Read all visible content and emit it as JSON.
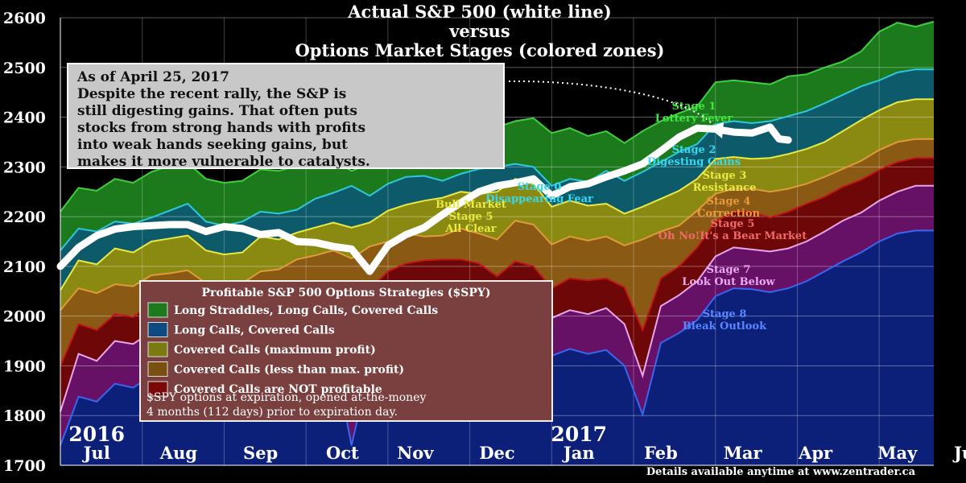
{
  "chart_data": {
    "type": "area",
    "title_lines": [
      "Actual S&P 500 (white line)",
      "versus",
      "Options Market Stages (colored zones)"
    ],
    "ylim": [
      1700,
      2600
    ],
    "yticks": [
      1700,
      1800,
      1900,
      2000,
      2100,
      2200,
      2300,
      2400,
      2500,
      2600
    ],
    "xlim": [
      0,
      48
    ],
    "month_labels": [
      {
        "label": "Jul",
        "x": 2
      },
      {
        "label": "Aug",
        "x": 6.5
      },
      {
        "label": "Sep",
        "x": 11
      },
      {
        "label": "Oct",
        "x": 15.5
      },
      {
        "label": "Nov",
        "x": 19.5
      },
      {
        "label": "Dec",
        "x": 24
      },
      {
        "label": "Jan",
        "x": 28.5
      },
      {
        "label": "Feb",
        "x": 33
      },
      {
        "label": "Mar",
        "x": 37.5
      },
      {
        "label": "Apr",
        "x": 41.5
      },
      {
        "label": "May",
        "x": 46
      },
      {
        "label": "Jun",
        "x": 50
      }
    ],
    "year_labels": [
      {
        "label": "2016",
        "x": 2
      },
      {
        "label": "2017",
        "x": 28.5
      }
    ],
    "x": [
      0,
      1,
      2,
      3,
      4,
      5,
      6,
      7,
      8,
      9,
      10,
      11,
      12,
      13,
      14,
      15,
      16,
      17,
      18,
      19,
      20,
      21,
      22,
      23,
      24,
      25,
      26,
      27,
      28,
      29,
      30,
      31,
      32,
      33,
      34,
      35,
      36,
      37,
      38,
      39,
      40,
      41,
      42,
      43,
      44,
      45,
      46,
      47,
      48
    ],
    "zones": [
      {
        "name": "Long Straddles, Long Calls, Covered Calls",
        "color": "#1c7a1c",
        "edge": "#3fcf3f",
        "values": [
          2210,
          2258,
          2252,
          2276,
          2268,
          2290,
          2302,
          2308,
          2276,
          2268,
          2272,
          2295,
          2292,
          2302,
          2318,
          2312,
          2292,
          2306,
          2332,
          2330,
          2352,
          2344,
          2360,
          2386,
          2380,
          2392,
          2398,
          2368,
          2378,
          2362,
          2372,
          2348,
          2372,
          2392,
          2408,
          2422,
          2470,
          2474,
          2470,
          2466,
          2482,
          2486,
          2500,
          2512,
          2532,
          2572,
          2590,
          2582,
          2592
        ]
      },
      {
        "name": "Long Calls, Covered Calls",
        "color": "#0d5a6a",
        "edge": "#2ec8e0",
        "values": [
          2132,
          2176,
          2170,
          2190,
          2186,
          2198,
          2212,
          2226,
          2190,
          2182,
          2190,
          2210,
          2206,
          2214,
          2236,
          2248,
          2262,
          2242,
          2266,
          2280,
          2282,
          2272,
          2286,
          2296,
          2300,
          2306,
          2300,
          2262,
          2276,
          2270,
          2292,
          2272,
          2290,
          2310,
          2330,
          2346,
          2386,
          2392,
          2388,
          2392,
          2402,
          2412,
          2428,
          2445,
          2462,
          2474,
          2490,
          2496,
          2496
        ]
      },
      {
        "name": "Covered Calls (maximum profit)",
        "color": "#8a8a12",
        "edge": "#eaea44",
        "values": [
          2052,
          2112,
          2104,
          2136,
          2128,
          2150,
          2156,
          2162,
          2132,
          2124,
          2128,
          2160,
          2154,
          2168,
          2178,
          2188,
          2178,
          2188,
          2212,
          2224,
          2232,
          2238,
          2250,
          2246,
          2250,
          2276,
          2266,
          2220,
          2232,
          2222,
          2226,
          2206,
          2220,
          2236,
          2252,
          2276,
          2316,
          2320,
          2316,
          2318,
          2326,
          2336,
          2350,
          2372,
          2394,
          2414,
          2430,
          2436,
          2436
        ]
      },
      {
        "name": "Covered Calls (less than max. profit)",
        "color": "#8a5a14",
        "edge": "#e09a3a",
        "values": [
          2012,
          2056,
          2046,
          2064,
          2060,
          2082,
          2086,
          2092,
          2066,
          2060,
          2066,
          2090,
          2094,
          2114,
          2122,
          2132,
          2116,
          2140,
          2150,
          2166,
          2160,
          2162,
          2176,
          2166,
          2154,
          2192,
          2184,
          2144,
          2160,
          2152,
          2160,
          2142,
          2154,
          2170,
          2182,
          2212,
          2246,
          2256,
          2256,
          2250,
          2256,
          2266,
          2280,
          2296,
          2312,
          2334,
          2350,
          2356,
          2356
        ]
      },
      {
        "name": "Covered Calls are NOT profitable",
        "color": "#6e0808",
        "edge": "#c01818",
        "values": [
          1900,
          1984,
          1972,
          2004,
          1998,
          2026,
          2036,
          2046,
          1994,
          1984,
          1994,
          2020,
          2018,
          2040,
          2050,
          2070,
          1890,
          2054,
          2090,
          2106,
          2112,
          2114,
          2114,
          2106,
          2080,
          2110,
          2100,
          2056,
          2076,
          2072,
          2076,
          2058,
          1972,
          2076,
          2100,
          2138,
          2190,
          2210,
          2210,
          2198,
          2210,
          2226,
          2240,
          2260,
          2274,
          2294,
          2310,
          2318,
          2318
        ]
      },
      {
        "name": "Stage 7 zone",
        "color": "#661166",
        "edge": "#e6a6ee",
        "values": [
          1808,
          1924,
          1910,
          1950,
          1944,
          1968,
          1982,
          1990,
          1944,
          1930,
          1944,
          1972,
          1968,
          1986,
          2000,
          2018,
          1830,
          1984,
          2020,
          2038,
          2044,
          2050,
          2060,
          2040,
          2016,
          2060,
          2040,
          1996,
          2012,
          2004,
          2016,
          1984,
          1880,
          2020,
          2042,
          2070,
          2120,
          2138,
          2134,
          2130,
          2136,
          2150,
          2170,
          2192,
          2208,
          2232,
          2250,
          2262,
          2262
        ]
      },
      {
        "name": "Stage 8 zone",
        "color": "#0c207a",
        "edge": "#3a66ee",
        "values": [
          1740,
          1838,
          1828,
          1864,
          1856,
          1880,
          1890,
          1900,
          1854,
          1836,
          1854,
          1884,
          1880,
          1898,
          1912,
          1930,
          1740,
          1900,
          1940,
          1956,
          1960,
          1966,
          1974,
          1954,
          1930,
          1970,
          1952,
          1920,
          1934,
          1924,
          1932,
          1900,
          1802,
          1946,
          1966,
          1992,
          2040,
          2056,
          2054,
          2048,
          2056,
          2070,
          2090,
          2110,
          2128,
          2150,
          2166,
          2172,
          2172
        ]
      }
    ],
    "sp500": {
      "name": "Actual S&P 500",
      "color": "#ffffff",
      "x": [
        0,
        1,
        2,
        3,
        4,
        5,
        6,
        7,
        8,
        9,
        10,
        11,
        12,
        13,
        14,
        15,
        16,
        17,
        18,
        19,
        20,
        21,
        22,
        23,
        24,
        25,
        26,
        27,
        28,
        29,
        30,
        31,
        32,
        33,
        34,
        35,
        36,
        37,
        38,
        39,
        39.5,
        40
      ],
      "values": [
        2100,
        2138,
        2162,
        2175,
        2180,
        2182,
        2184,
        2184,
        2170,
        2180,
        2176,
        2164,
        2168,
        2150,
        2148,
        2140,
        2135,
        2090,
        2142,
        2164,
        2178,
        2204,
        2228,
        2250,
        2262,
        2268,
        2276,
        2242,
        2260,
        2266,
        2280,
        2292,
        2306,
        2332,
        2360,
        2378,
        2376,
        2370,
        2368,
        2380,
        2356,
        2354
      ]
    },
    "stage_labels": [
      {
        "lines": [
          "Stage 1",
          "Lottery Fever"
        ],
        "color": "#3fe63f"
      },
      {
        "lines": [
          "Stage 2",
          "Digesting Gains"
        ],
        "color": "#38d8ee"
      },
      {
        "lines": [
          "Stage 0",
          "Disappearing Fear"
        ],
        "color": "#38d8ee"
      },
      {
        "lines": [
          "Stage 3",
          "Resistance"
        ],
        "color": "#eaea44"
      },
      {
        "lines": [
          "Bull Market",
          "Stage 5",
          "All Clear"
        ],
        "color": "#eaea44"
      },
      {
        "lines": [
          "Stage 4",
          "Correction"
        ],
        "color": "#e89a3e"
      },
      {
        "lines": [
          "Stage 5",
          "Oh No!It's a Bear Market"
        ],
        "color": "#f06a6a"
      },
      {
        "lines": [
          "Stage 7",
          "Look Out Below"
        ],
        "color": "#eaaaf2"
      },
      {
        "lines": [
          "Stage 8",
          "Bleak Outlook"
        ],
        "color": "#5a86ff"
      }
    ],
    "note": {
      "lines": [
        "As of April 25, 2017",
        "Despite the recent rally, the S&P is",
        "still digesting gains. That often puts",
        "stocks from strong hands with profits",
        "into weak hands seeking gains, but",
        "makes it more vulnerable to catalysts."
      ],
      "background": "#c8c8c8"
    },
    "legend": {
      "title": "Profitable S&P 500 Options Strategies ($SPY)",
      "background": "#7a4040",
      "items": [
        {
          "label": "Long Straddles, Long Calls, Covered Calls",
          "color": "#1c7a1c"
        },
        {
          "label": "Long Calls, Covered Calls",
          "color": "#0d4a80"
        },
        {
          "label": "Covered Calls (maximum profit)",
          "color": "#7a7a10"
        },
        {
          "label": "Covered Calls (less than max. profit)",
          "color": "#7a5010"
        },
        {
          "label": "Covered Calls are NOT profitable",
          "color": "#7a0808"
        }
      ],
      "note_lines": [
        "$SPY options at expiration, opened at-the-money",
        "4 months (112 days) prior to expiration day."
      ]
    },
    "footer": "Details available anytime at www.zentrader.ca",
    "grid": true
  }
}
